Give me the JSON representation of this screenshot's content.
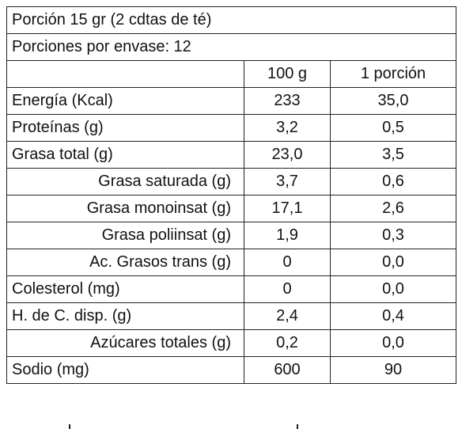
{
  "table": {
    "title": "Porción 15 gr (2 cdtas de té)",
    "servings": "Porciones por envase:  12",
    "header": [
      "100 g",
      "1 porción"
    ],
    "rows": [
      [
        "Energía (Kcal)",
        "233",
        "35,0"
      ],
      [
        "Proteínas (g)",
        "3,2",
        "0,5"
      ],
      [
        "Grasa total (g)",
        "23,0",
        "3,5"
      ],
      [
        "Grasa saturada (g)",
        "3,7",
        "0,6"
      ],
      [
        "Grasa monoinsat (g)",
        "17,1",
        "2,6"
      ],
      [
        "Grasa poliinsat (g)",
        "1,9",
        "0,3"
      ],
      [
        "Ac. Grasos trans (g)",
        "0",
        "0,0"
      ],
      [
        "Colesterol (mg)",
        "0",
        "0,0"
      ],
      [
        "H. de C. disp. (g)",
        "2,4",
        "0,4"
      ],
      [
        "Azúcares totales (g)",
        "0,2",
        "0,0"
      ],
      [
        "Sodio (mg)",
        "600",
        "90"
      ]
    ]
  }
}
